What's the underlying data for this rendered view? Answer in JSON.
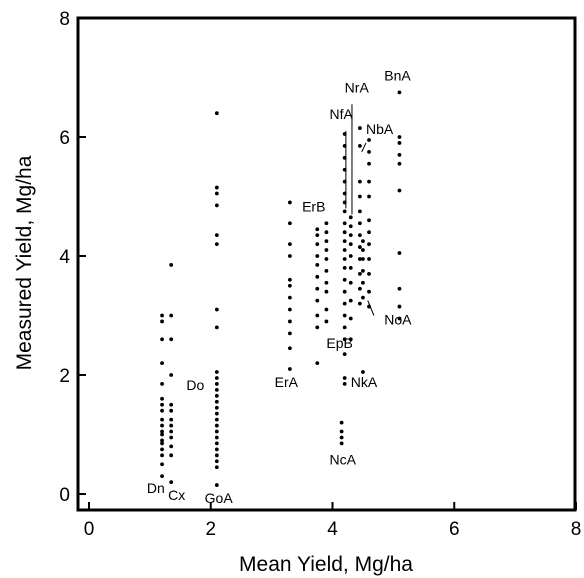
{
  "chart_data": {
    "type": "scatter",
    "title": "",
    "xlabel": "Mean Yield, Mg/ha",
    "ylabel": "Measured Yield, Mg/ha",
    "xlim": [
      0,
      8
    ],
    "ylim": [
      0,
      8
    ],
    "xticks": [
      "0",
      "2",
      "4",
      "6",
      "8"
    ],
    "yticks": [
      "0",
      "2",
      "4",
      "6",
      "8"
    ],
    "grid": false,
    "legend": "none",
    "marker_color": "#000000",
    "groups": [
      {
        "name": "Dn",
        "x": 1.2,
        "y": [
          0.3,
          0.5,
          0.65,
          0.75,
          0.85,
          0.9,
          1.0,
          1.05,
          1.15,
          1.25,
          1.4,
          1.5,
          1.6,
          1.85,
          2.2,
          2.6,
          2.9,
          3.0
        ]
      },
      {
        "name": "Cx",
        "x": 1.35,
        "y": [
          0.2,
          0.65,
          0.8,
          0.95,
          1.05,
          1.15,
          1.25,
          1.4,
          1.5,
          2.0,
          2.6,
          3.0,
          3.85
        ]
      },
      {
        "name": "GoA",
        "x": 2.1,
        "y": [
          0.15,
          0.45,
          0.55,
          0.65,
          0.75,
          0.85,
          0.95,
          1.05,
          1.15,
          1.25,
          1.35,
          1.45,
          1.55,
          1.65,
          1.75,
          1.85,
          1.95,
          2.05,
          2.8,
          3.1,
          4.2,
          4.35,
          4.85,
          5.05,
          5.15,
          6.4
        ]
      },
      {
        "name": "ErA",
        "x": 3.3,
        "y": [
          2.1,
          2.45,
          2.7,
          2.9,
          3.1,
          3.3,
          3.5,
          3.6,
          4.0,
          4.2,
          4.55,
          4.9
        ]
      },
      {
        "name": "ErB",
        "x": 3.75,
        "y": [
          2.2,
          2.8,
          3.0,
          3.25,
          3.45,
          3.65,
          3.85,
          4.0,
          4.2,
          4.35,
          4.45
        ]
      },
      {
        "name": "EpB",
        "x": 3.9,
        "y": [
          2.9,
          3.1,
          3.4,
          3.55,
          3.75,
          3.95,
          4.1,
          4.25,
          4.4,
          4.55
        ]
      },
      {
        "name": "NkA",
        "x": 4.2,
        "y": [
          1.85,
          1.95,
          2.35,
          2.6,
          2.8,
          3.0,
          3.2,
          3.4,
          3.6,
          3.8,
          3.95,
          4.1,
          4.25,
          4.4,
          4.55,
          4.75,
          4.9,
          5.05,
          5.25,
          5.45,
          5.65,
          5.85,
          6.05
        ]
      },
      {
        "name": "NcA",
        "x": 4.15,
        "y": [
          0.85,
          0.95,
          1.05,
          1.2
        ]
      },
      {
        "name": "NrA",
        "x": 4.3,
        "y": [
          2.6,
          2.95,
          3.25,
          3.55,
          3.8,
          4.0,
          4.2,
          4.35,
          4.5,
          4.65
        ]
      },
      {
        "name": "NfA",
        "x": 4.45,
        "y": [
          3.2,
          3.45,
          3.7,
          3.95,
          4.15,
          4.35,
          4.55,
          4.75,
          5.0,
          5.25,
          5.85,
          6.15
        ]
      },
      {
        "name": "NbA",
        "x": 4.6,
        "y": [
          3.15,
          3.4,
          3.7,
          3.95,
          4.2,
          4.4,
          4.6,
          5.0,
          5.25,
          5.55,
          5.75,
          5.95
        ]
      },
      {
        "name": "NoA",
        "x": 4.5,
        "y": [
          2.05,
          3.3,
          3.55,
          3.75,
          3.95,
          4.1,
          4.25
        ]
      },
      {
        "name": "BnA",
        "x": 5.1,
        "y": [
          2.95,
          3.15,
          3.45,
          4.05,
          5.1,
          5.55,
          5.7,
          5.9,
          6.0,
          6.75
        ]
      }
    ],
    "annotations": [
      {
        "text": "Dn",
        "x": 0.95,
        "y": 0.02
      },
      {
        "text": "Cx",
        "x": 1.3,
        "y": -0.1
      },
      {
        "text": "GoA",
        "x": 1.9,
        "y": -0.15
      },
      {
        "text": "Do",
        "x": 1.6,
        "y": 1.75
      },
      {
        "text": "ErA",
        "x": 3.05,
        "y": 1.8
      },
      {
        "text": "ErB",
        "x": 3.5,
        "y": 4.75
      },
      {
        "text": "EpB",
        "x": 3.9,
        "y": 2.45
      },
      {
        "text": "NkA",
        "x": 4.3,
        "y": 1.8
      },
      {
        "text": "NcA",
        "x": 3.95,
        "y": 0.5
      },
      {
        "text": "NrA",
        "x": 4.2,
        "y": 6.75
      },
      {
        "text": "NfA",
        "x": 3.95,
        "y": 6.3
      },
      {
        "text": "NbA",
        "x": 4.55,
        "y": 6.05
      },
      {
        "text": "NoA",
        "x": 4.85,
        "y": 2.85
      },
      {
        "text": "BnA",
        "x": 4.85,
        "y": 6.95
      }
    ],
    "leader_lines": [
      {
        "from": [
          4.32,
          6.55
        ],
        "to": [
          4.32,
          4.7
        ]
      },
      {
        "from": [
          4.22,
          6.1
        ],
        "to": [
          4.22,
          4.8
        ]
      },
      {
        "from": [
          4.55,
          5.9
        ],
        "to": [
          4.48,
          5.75
        ]
      },
      {
        "from": [
          4.68,
          3.0
        ],
        "to": [
          4.58,
          3.25
        ]
      }
    ]
  }
}
